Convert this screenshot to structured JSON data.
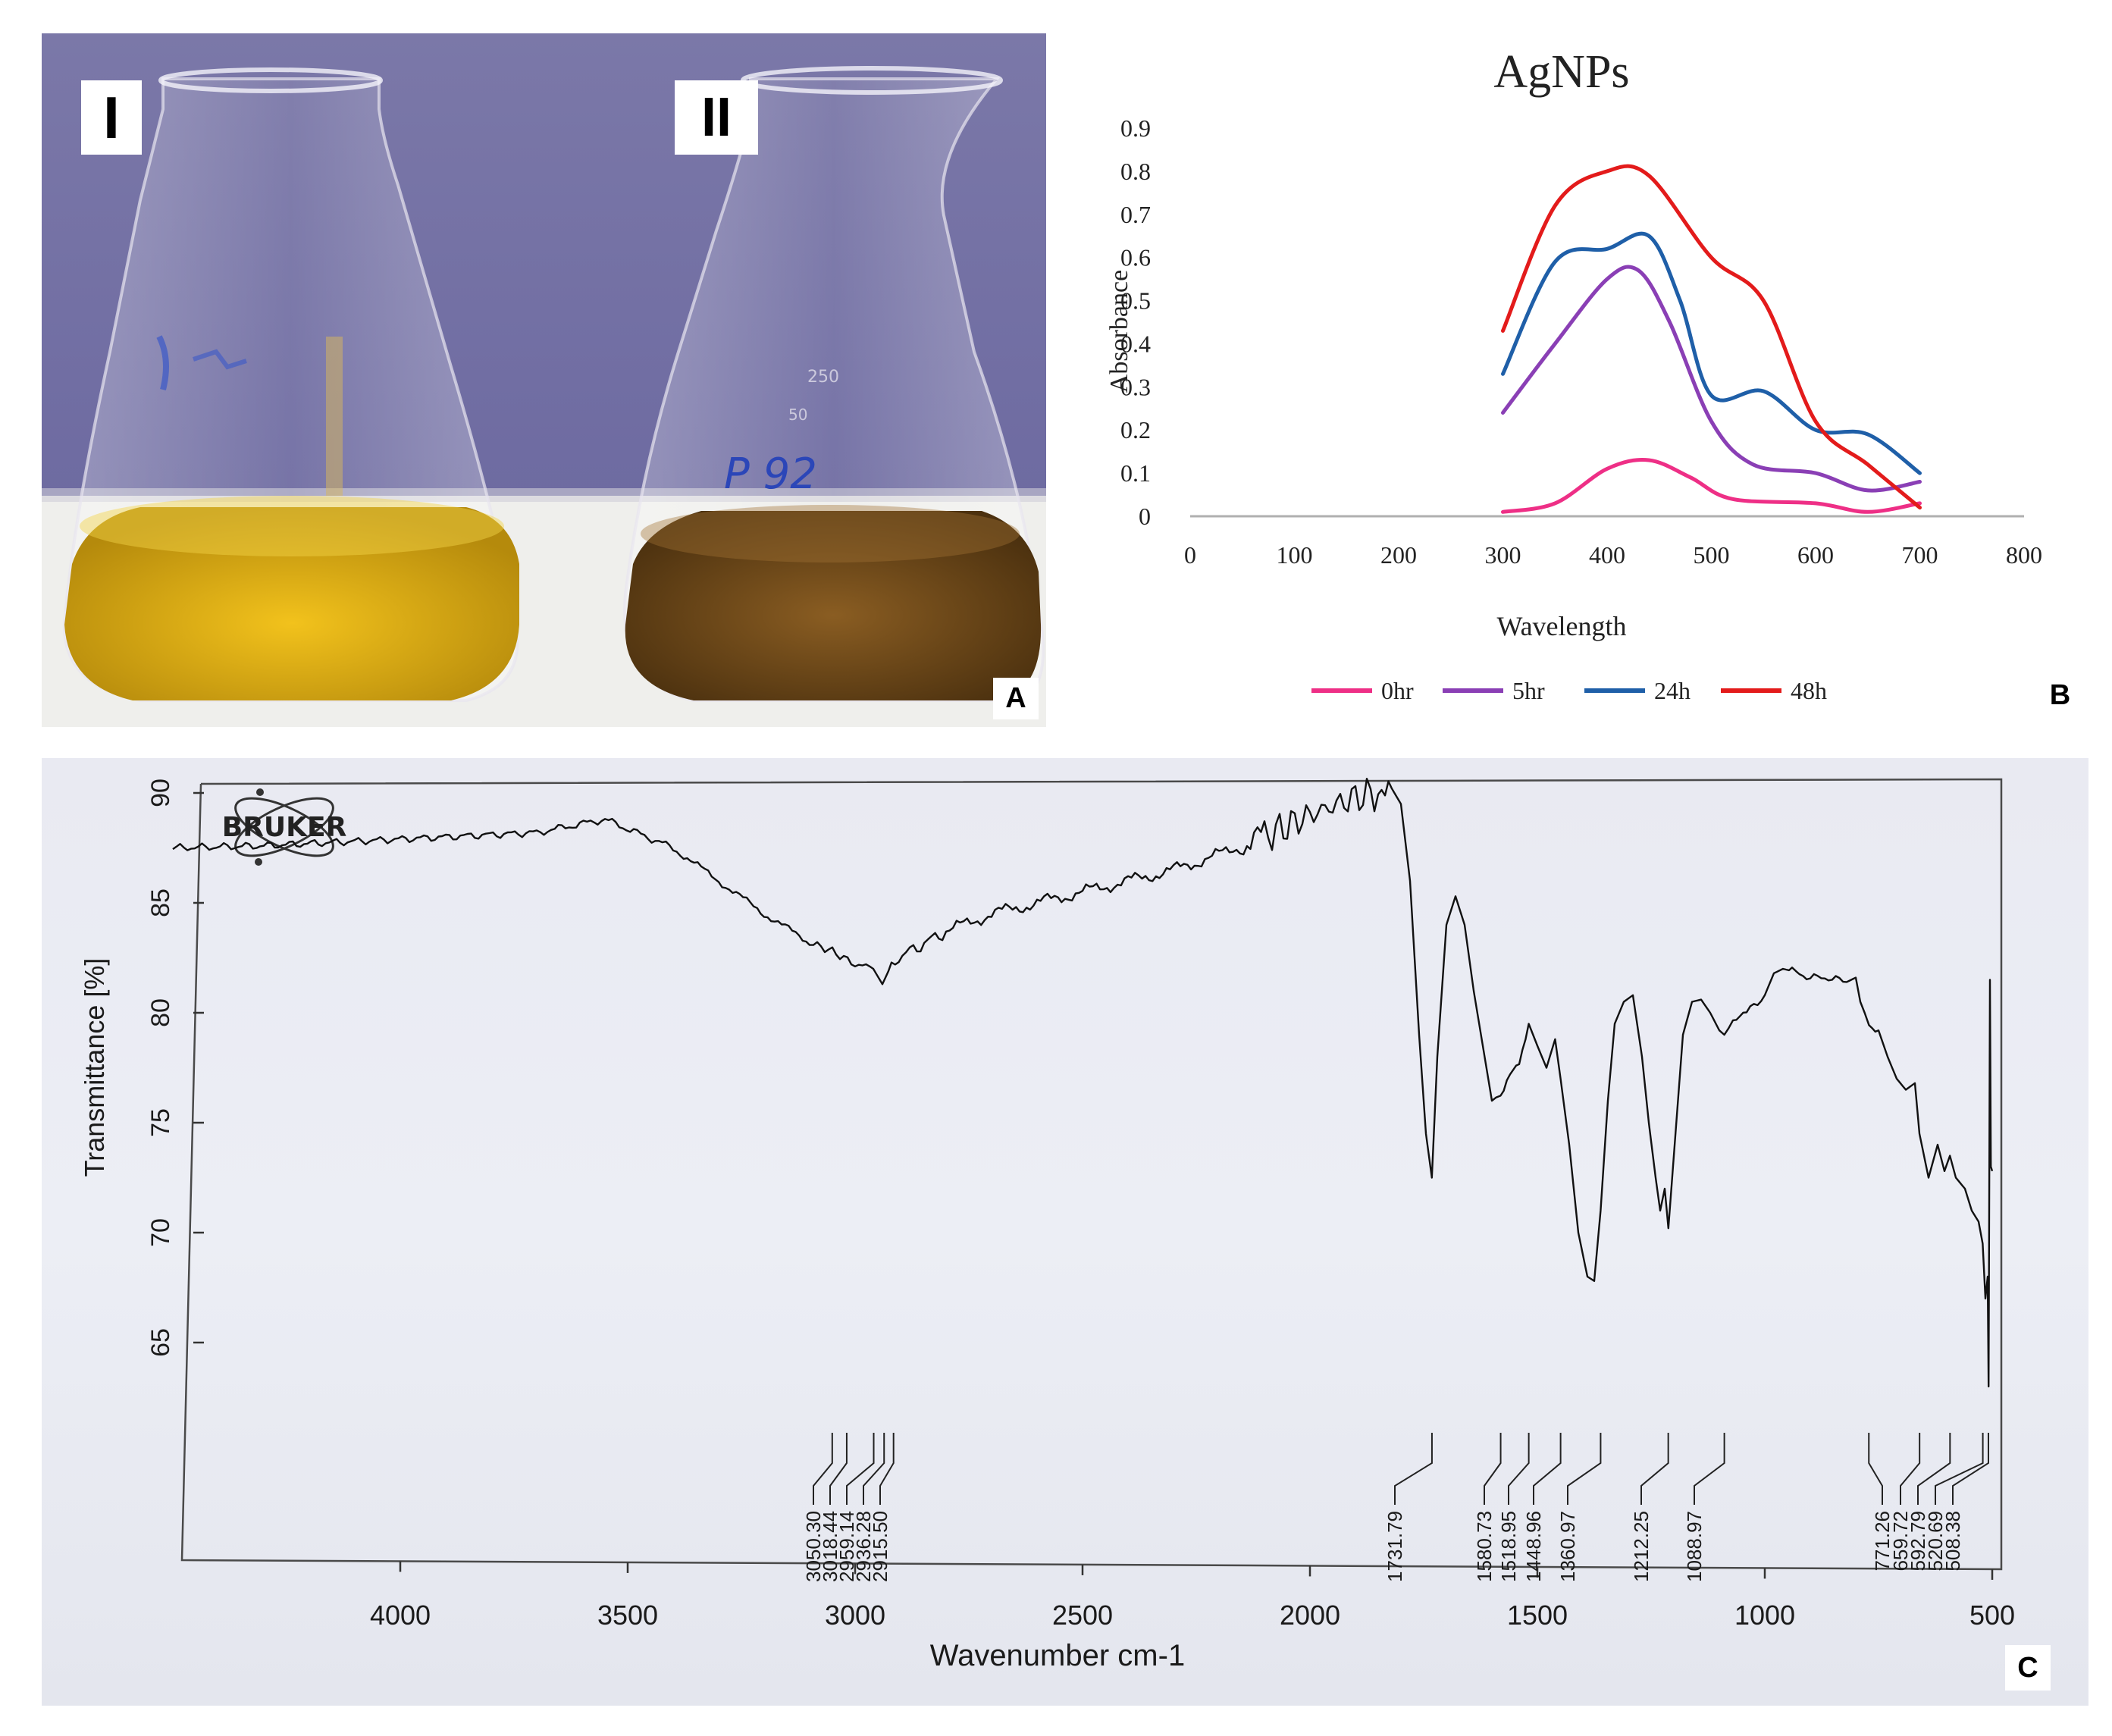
{
  "panel_a": {
    "flask_labels": [
      "I",
      "II"
    ],
    "flask_colors": {
      "flask_1_liquid": "#d9a90f",
      "flask_2_liquid": "#6b4515",
      "background": "#726fa3",
      "table": "#f2f2f0"
    },
    "flask_markings": {
      "flask_2_text": "P 92",
      "flask_2_volume_marks": [
        "250",
        "50"
      ]
    },
    "letter": "A"
  },
  "panel_b": {
    "letter": "B"
  },
  "panel_c": {
    "logo_text": "BRUKER",
    "peak_labels": [
      "3050.30",
      "3018.44",
      "2959.14",
      "2936.28",
      "2915.50",
      "1731.79",
      "1580.73",
      "1518.95",
      "1448.96",
      "1360.97",
      "1212.25",
      "1088.97",
      "771.26",
      "659.72",
      "592.79",
      "520.69",
      "508.38"
    ],
    "letter": "C"
  },
  "chart_data": [
    {
      "type": "line",
      "title": "AgNPs",
      "xlabel": "Wavelength",
      "ylabel": "Absorbance",
      "xlim": [
        0,
        800
      ],
      "ylim": [
        0,
        0.9
      ],
      "xticks": [
        "0",
        "100",
        "200",
        "300",
        "400",
        "500",
        "600",
        "700",
        "800"
      ],
      "yticks": [
        "0",
        "0.1",
        "0.2",
        "0.3",
        "0.4",
        "0.5",
        "0.6",
        "0.7",
        "0.8",
        "0.9"
      ],
      "legend_position": "bottom",
      "grid": false,
      "series": [
        {
          "name": "0hr",
          "color": "#ee2f86",
          "x": [
            300,
            350,
            400,
            440,
            480,
            520,
            600,
            650,
            700
          ],
          "y": [
            0.01,
            0.03,
            0.11,
            0.13,
            0.09,
            0.04,
            0.03,
            0.01,
            0.03
          ]
        },
        {
          "name": "5hr",
          "color": "#8a3fb5",
          "x": [
            300,
            350,
            400,
            430,
            460,
            500,
            540,
            600,
            650,
            700
          ],
          "y": [
            0.24,
            0.4,
            0.55,
            0.57,
            0.45,
            0.22,
            0.12,
            0.1,
            0.06,
            0.08
          ]
        },
        {
          "name": "24h",
          "color": "#1f5fa8",
          "x": [
            300,
            350,
            400,
            440,
            470,
            500,
            550,
            600,
            650,
            700
          ],
          "y": [
            0.33,
            0.59,
            0.62,
            0.65,
            0.5,
            0.28,
            0.29,
            0.2,
            0.19,
            0.1
          ]
        },
        {
          "name": "48h",
          "color": "#e31b1b",
          "x": [
            300,
            350,
            400,
            440,
            500,
            550,
            600,
            650,
            700
          ],
          "y": [
            0.43,
            0.72,
            0.8,
            0.79,
            0.6,
            0.5,
            0.22,
            0.12,
            0.02
          ]
        }
      ]
    },
    {
      "type": "line",
      "title": "",
      "xlabel": "Wavenumber cm-1",
      "ylabel": "Transmittance [%]",
      "x_reversed": true,
      "xlim": [
        4500,
        500
      ],
      "ylim": [
        58,
        90
      ],
      "xticks": [
        "4000",
        "3500",
        "3000",
        "2500",
        "2000",
        "1500",
        "1000",
        "500"
      ],
      "yticks": [
        "90",
        "85",
        "80",
        "75",
        "70",
        "65"
      ],
      "series": [
        {
          "name": "",
          "color": "#111111",
          "x": [
            4500,
            4300,
            4100,
            3900,
            3700,
            3550,
            3400,
            3300,
            3200,
            3100,
            3050,
            3000,
            2960,
            2940,
            2920,
            2880,
            2800,
            2700,
            2600,
            2500,
            2400,
            2300,
            2200,
            2100,
            2050,
            2000,
            1950,
            1900,
            1850,
            1820,
            1800,
            1780,
            1760,
            1745,
            1732,
            1720,
            1700,
            1680,
            1660,
            1640,
            1620,
            1600,
            1581,
            1560,
            1540,
            1519,
            1500,
            1480,
            1461,
            1449,
            1430,
            1410,
            1390,
            1375,
            1361,
            1345,
            1330,
            1310,
            1290,
            1270,
            1255,
            1240,
            1230,
            1220,
            1212,
            1200,
            1180,
            1160,
            1140,
            1120,
            1100,
            1089,
            1070,
            1040,
            1000,
            980,
            960,
            940,
            900,
            860,
            820,
            800,
            790,
            771,
            750,
            730,
            710,
            690,
            670,
            660,
            640,
            620,
            605,
            593,
            580,
            560,
            545,
            530,
            521,
            515,
            510,
            508,
            505,
            503,
            500
          ],
          "y": [
            87.5,
            87.6,
            87.8,
            88.0,
            88.2,
            88.8,
            87.5,
            86.0,
            84.5,
            83.2,
            82.8,
            82.2,
            82.0,
            81.3,
            82.2,
            82.8,
            83.7,
            84.5,
            85.0,
            85.5,
            86.0,
            86.5,
            87.2,
            88.0,
            88.5,
            89.0,
            89.4,
            89.8,
            90.0,
            90.2,
            89.5,
            86.0,
            79.0,
            74.5,
            72.5,
            78.0,
            84.0,
            85.3,
            84.0,
            81.0,
            78.5,
            76.0,
            76.3,
            77.2,
            77.8,
            79.5,
            78.5,
            77.5,
            78.8,
            77.0,
            74.0,
            70.0,
            68.0,
            67.8,
            71.0,
            76.0,
            79.5,
            80.5,
            80.8,
            78.0,
            75.0,
            72.5,
            71.0,
            72.0,
            70.2,
            73.5,
            79.0,
            80.5,
            80.6,
            80.0,
            79.2,
            79.0,
            79.6,
            80.0,
            80.8,
            81.8,
            82.0,
            81.9,
            81.6,
            81.6,
            81.4,
            81.6,
            80.5,
            79.5,
            79.2,
            78.0,
            77.0,
            76.5,
            76.8,
            74.5,
            72.5,
            74.0,
            72.8,
            73.5,
            72.5,
            72.0,
            71.0,
            70.5,
            69.5,
            67.0,
            68.0,
            63.0,
            81.5,
            73.0,
            72.8
          ]
        }
      ]
    }
  ]
}
